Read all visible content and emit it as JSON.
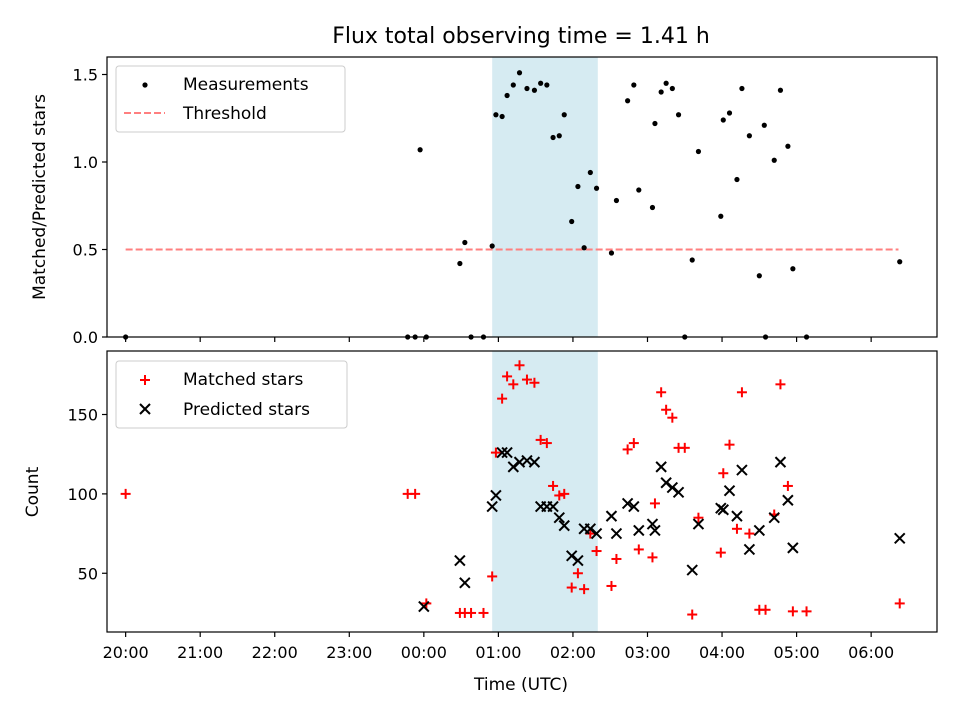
{
  "chart_data": [
    {
      "type": "scatter",
      "title": "Flux total observing time = 1.41 h",
      "xlabel": "",
      "ylabel": "Matched/Predicted stars",
      "ylim": [
        0,
        1.6
      ],
      "xlim": [
        "19:45",
        "06:53"
      ],
      "yticks": [
        "0.0",
        "0.5",
        "1.0",
        "1.5"
      ],
      "ytick_values": [
        0,
        0.5,
        1.0,
        1.5
      ],
      "legend_position": "upper-left",
      "highlight_span": {
        "start": "00:55",
        "end": "02:20",
        "color": "#add8e6"
      },
      "threshold": {
        "name": "Threshold",
        "value": 0.5,
        "x_start": "20:00",
        "x_end": "06:22",
        "color": "#ff7f7f",
        "style": "dashed"
      },
      "series": [
        {
          "name": "Measurements",
          "color": "#000000",
          "marker": "dot",
          "points": [
            [
              "20:00",
              0
            ],
            [
              "23:47",
              0
            ],
            [
              "23:53",
              0
            ],
            [
              "00:02",
              0
            ],
            [
              "23:57",
              1.07
            ],
            [
              "00:29",
              0.42
            ],
            [
              "00:33",
              0.54
            ],
            [
              "00:38",
              0
            ],
            [
              "00:48",
              0
            ],
            [
              "00:55",
              0.52
            ],
            [
              "00:58",
              1.27
            ],
            [
              "01:03",
              1.26
            ],
            [
              "01:07",
              1.38
            ],
            [
              "01:12",
              1.44
            ],
            [
              "01:17",
              1.51
            ],
            [
              "01:23",
              1.42
            ],
            [
              "01:29",
              1.41
            ],
            [
              "01:34",
              1.45
            ],
            [
              "01:39",
              1.44
            ],
            [
              "01:44",
              1.14
            ],
            [
              "01:49",
              1.15
            ],
            [
              "01:53",
              1.27
            ],
            [
              "01:59",
              0.66
            ],
            [
              "02:04",
              0.86
            ],
            [
              "02:09",
              0.51
            ],
            [
              "02:14",
              0.94
            ],
            [
              "02:19",
              0.85
            ],
            [
              "02:31",
              0.48
            ],
            [
              "02:35",
              0.78
            ],
            [
              "02:44",
              1.35
            ],
            [
              "02:49",
              1.44
            ],
            [
              "02:53",
              0.84
            ],
            [
              "03:04",
              0.74
            ],
            [
              "03:06",
              1.22
            ],
            [
              "03:11",
              1.4
            ],
            [
              "03:15",
              1.45
            ],
            [
              "03:20",
              1.42
            ],
            [
              "03:25",
              1.27
            ],
            [
              "03:30",
              0
            ],
            [
              "03:36",
              0.44
            ],
            [
              "03:41",
              1.06
            ],
            [
              "03:59",
              0.69
            ],
            [
              "04:01",
              1.24
            ],
            [
              "04:06",
              1.28
            ],
            [
              "04:12",
              0.9
            ],
            [
              "04:16",
              1.42
            ],
            [
              "04:22",
              1.15
            ],
            [
              "04:30",
              0.35
            ],
            [
              "04:34",
              1.21
            ],
            [
              "04:35",
              0
            ],
            [
              "04:42",
              1.01
            ],
            [
              "04:47",
              1.41
            ],
            [
              "04:53",
              1.09
            ],
            [
              "04:57",
              0.39
            ],
            [
              "05:08",
              0
            ],
            [
              "06:23",
              0.43
            ]
          ]
        }
      ]
    },
    {
      "type": "scatter",
      "title": "",
      "xlabel": "Time (UTC)",
      "ylabel": "Count",
      "ylim": [
        13,
        190
      ],
      "xlim": [
        "19:45",
        "06:53"
      ],
      "yticks": [
        "50",
        "100",
        "150"
      ],
      "ytick_values": [
        50,
        100,
        150
      ],
      "xticks": [
        "20:00",
        "21:00",
        "22:00",
        "23:00",
        "00:00",
        "01:00",
        "02:00",
        "03:00",
        "04:00",
        "05:00",
        "06:00"
      ],
      "legend_position": "upper-left",
      "highlight_span": {
        "start": "00:55",
        "end": "02:20",
        "color": "#add8e6"
      },
      "series": [
        {
          "name": "Matched stars",
          "color": "#ff0000",
          "marker": "plus",
          "points": [
            [
              "20:00",
              100
            ],
            [
              "23:47",
              100
            ],
            [
              "23:53",
              100
            ],
            [
              "00:02",
              31
            ],
            [
              "00:29",
              25
            ],
            [
              "00:33",
              25
            ],
            [
              "00:38",
              25
            ],
            [
              "00:48",
              25
            ],
            [
              "00:55",
              48
            ],
            [
              "00:58",
              126
            ],
            [
              "01:03",
              160
            ],
            [
              "01:07",
              174
            ],
            [
              "01:12",
              169
            ],
            [
              "01:17",
              181
            ],
            [
              "01:23",
              172
            ],
            [
              "01:29",
              170
            ],
            [
              "01:34",
              134
            ],
            [
              "01:39",
              132
            ],
            [
              "01:44",
              105
            ],
            [
              "01:49",
              99
            ],
            [
              "01:53",
              100
            ],
            [
              "01:59",
              41
            ],
            [
              "02:04",
              50
            ],
            [
              "02:09",
              40
            ],
            [
              "02:14",
              75
            ],
            [
              "02:19",
              64
            ],
            [
              "02:31",
              42
            ],
            [
              "02:35",
              59
            ],
            [
              "02:44",
              128
            ],
            [
              "02:49",
              132
            ],
            [
              "02:53",
              65
            ],
            [
              "03:04",
              60
            ],
            [
              "03:06",
              94
            ],
            [
              "03:11",
              164
            ],
            [
              "03:15",
              153
            ],
            [
              "03:20",
              148
            ],
            [
              "03:25",
              129
            ],
            [
              "03:30",
              129
            ],
            [
              "03:36",
              24
            ],
            [
              "03:41",
              85
            ],
            [
              "03:59",
              63
            ],
            [
              "04:01",
              113
            ],
            [
              "04:06",
              131
            ],
            [
              "04:12",
              78
            ],
            [
              "04:16",
              164
            ],
            [
              "04:22",
              75
            ],
            [
              "04:30",
              27
            ],
            [
              "04:35",
              27
            ],
            [
              "04:42",
              87
            ],
            [
              "04:47",
              169
            ],
            [
              "04:53",
              105
            ],
            [
              "04:57",
              26
            ],
            [
              "05:08",
              26
            ],
            [
              "06:23",
              31
            ]
          ]
        },
        {
          "name": "Predicted stars",
          "color": "#000000",
          "marker": "x",
          "points": [
            [
              "00:00",
              29
            ],
            [
              "00:29",
              58
            ],
            [
              "00:33",
              44
            ],
            [
              "00:55",
              92
            ],
            [
              "00:58",
              99
            ],
            [
              "01:03",
              126
            ],
            [
              "01:07",
              126
            ],
            [
              "01:12",
              117
            ],
            [
              "01:17",
              120
            ],
            [
              "01:23",
              121
            ],
            [
              "01:29",
              120
            ],
            [
              "01:34",
              92
            ],
            [
              "01:39",
              92
            ],
            [
              "01:44",
              92
            ],
            [
              "01:49",
              85
            ],
            [
              "01:53",
              80
            ],
            [
              "01:59",
              61
            ],
            [
              "02:04",
              58
            ],
            [
              "02:09",
              78
            ],
            [
              "02:14",
              78
            ],
            [
              "02:19",
              75
            ],
            [
              "02:31",
              86
            ],
            [
              "02:35",
              75
            ],
            [
              "02:44",
              94
            ],
            [
              "02:49",
              92
            ],
            [
              "02:53",
              77
            ],
            [
              "03:04",
              81
            ],
            [
              "03:06",
              77
            ],
            [
              "03:11",
              117
            ],
            [
              "03:15",
              107
            ],
            [
              "03:20",
              104
            ],
            [
              "03:25",
              101
            ],
            [
              "03:36",
              52
            ],
            [
              "03:41",
              81
            ],
            [
              "03:59",
              91
            ],
            [
              "04:01",
              90
            ],
            [
              "04:06",
              102
            ],
            [
              "04:12",
              86
            ],
            [
              "04:16",
              115
            ],
            [
              "04:22",
              65
            ],
            [
              "04:30",
              77
            ],
            [
              "04:42",
              85
            ],
            [
              "04:47",
              120
            ],
            [
              "04:53",
              96
            ],
            [
              "04:57",
              66
            ],
            [
              "06:23",
              72
            ]
          ]
        }
      ]
    }
  ]
}
